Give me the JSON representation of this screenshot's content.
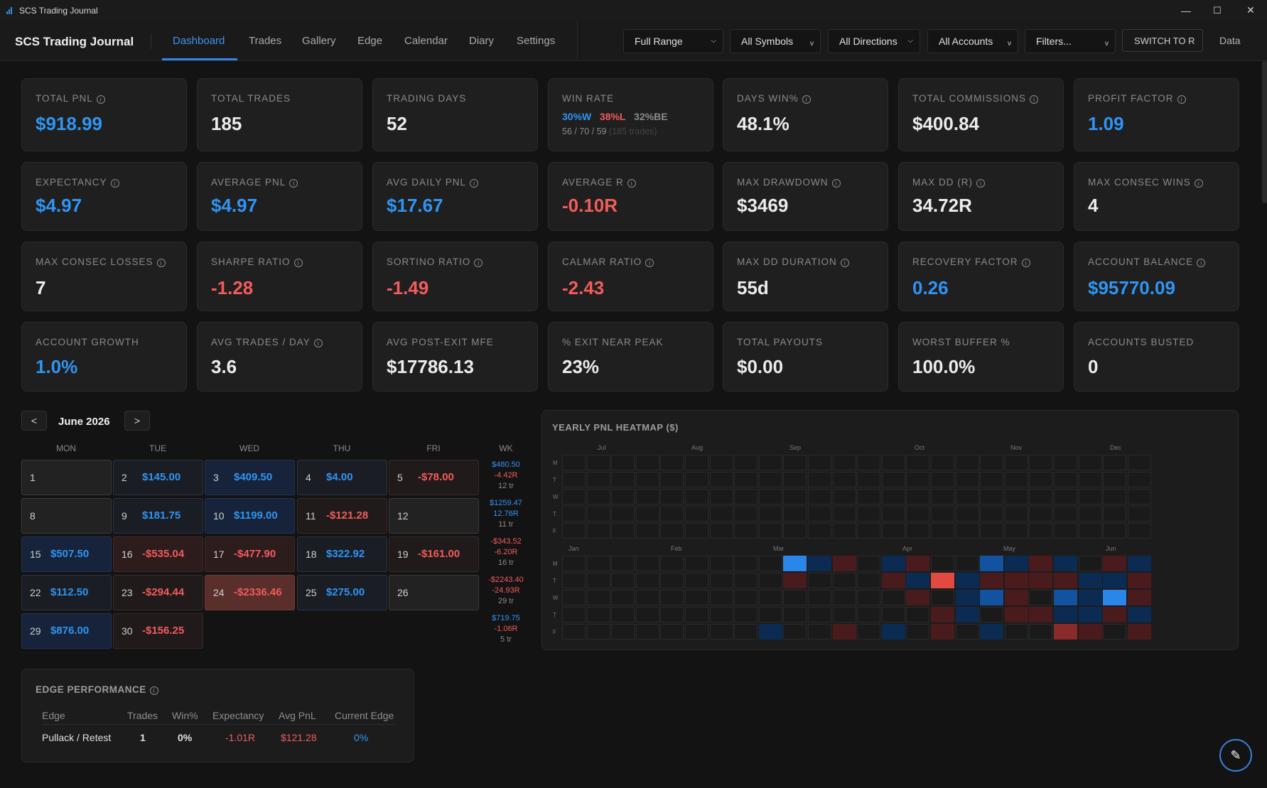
{
  "window": {
    "title": "SCS Trading Journal",
    "minimize": "—",
    "maximize": "☐",
    "close": "✕"
  },
  "nav": {
    "brand": "SCS Trading Journal",
    "tabs": [
      "Dashboard",
      "Trades",
      "Gallery",
      "Edge",
      "Calendar",
      "Diary",
      "Settings"
    ],
    "active_tab": "Dashboard"
  },
  "filters": {
    "range": "Full Range",
    "symbols": "All Symbols",
    "directions": "All Directions",
    "accounts": "All Accounts",
    "filters": "Filters...",
    "switch": "SWITCH TO R",
    "data": "Data"
  },
  "stats": [
    {
      "label": "TOTAL PNL",
      "info": true,
      "value": "$918.99",
      "color": "blue"
    },
    {
      "label": "TOTAL TRADES",
      "info": false,
      "value": "185",
      "color": "white"
    },
    {
      "label": "TRADING DAYS",
      "info": false,
      "value": "52",
      "color": "white"
    },
    {
      "label": "WIN RATE",
      "info": false,
      "value": "",
      "color": "white"
    },
    {
      "label": "DAYS WIN%",
      "info": true,
      "value": "48.1%",
      "color": "white"
    },
    {
      "label": "TOTAL COMMISSIONS",
      "info": true,
      "value": "$400.84",
      "color": "white"
    },
    {
      "label": "PROFIT FACTOR",
      "info": true,
      "value": "1.09",
      "color": "blue"
    },
    {
      "label": "EXPECTANCY",
      "info": true,
      "value": "$4.97",
      "color": "blue"
    },
    {
      "label": "AVERAGE PNL",
      "info": true,
      "value": "$4.97",
      "color": "blue"
    },
    {
      "label": "AVG DAILY PNL",
      "info": true,
      "value": "$17.67",
      "color": "blue"
    },
    {
      "label": "AVERAGE R",
      "info": true,
      "value": "-0.10R",
      "color": "red"
    },
    {
      "label": "MAX DRAWDOWN",
      "info": true,
      "value": "$3469",
      "color": "white"
    },
    {
      "label": "MAX DD (R)",
      "info": true,
      "value": "34.72R",
      "color": "white"
    },
    {
      "label": "MAX CONSEC WINS",
      "info": true,
      "value": "4",
      "color": "white"
    },
    {
      "label": "MAX CONSEC LOSSES",
      "info": true,
      "value": "7",
      "color": "white"
    },
    {
      "label": "SHARPE RATIO",
      "info": true,
      "value": "-1.28",
      "color": "red"
    },
    {
      "label": "SORTINO RATIO",
      "info": true,
      "value": "-1.49",
      "color": "red"
    },
    {
      "label": "CALMAR RATIO",
      "info": true,
      "value": "-2.43",
      "color": "red"
    },
    {
      "label": "MAX DD DURATION",
      "info": true,
      "value": "55d",
      "color": "white"
    },
    {
      "label": "RECOVERY FACTOR",
      "info": true,
      "value": "0.26",
      "color": "blue"
    },
    {
      "label": "ACCOUNT BALANCE",
      "info": true,
      "value": "$95770.09",
      "color": "blue"
    },
    {
      "label": "ACCOUNT GROWTH",
      "info": false,
      "value": "1.0%",
      "color": "blue"
    },
    {
      "label": "AVG TRADES / DAY",
      "info": true,
      "value": "3.6",
      "color": "white"
    },
    {
      "label": "AVG POST-EXIT MFE",
      "info": false,
      "value": "$17786.13",
      "color": "white"
    },
    {
      "label": "% EXIT NEAR PEAK",
      "info": false,
      "value": "23%",
      "color": "white"
    },
    {
      "label": "TOTAL PAYOUTS",
      "info": false,
      "value": "$0.00",
      "color": "white"
    },
    {
      "label": "WORST BUFFER %",
      "info": false,
      "value": "100.0%",
      "color": "white"
    },
    {
      "label": "ACCOUNTS BUSTED",
      "info": false,
      "value": "0",
      "color": "white"
    }
  ],
  "win_rate": {
    "w": "30%W",
    "l": "38%L",
    "be": "32%BE",
    "counts": "56 / 70 / 59",
    "trades": "(185 trades)"
  },
  "calendar": {
    "prev": "<",
    "next": ">",
    "month": "June 2026",
    "weekdays": [
      "MON",
      "TUE",
      "WED",
      "THU",
      "FRI",
      "WK"
    ],
    "weeks": [
      [
        {
          "d": "1",
          "p": "",
          "s": "none"
        },
        {
          "d": "2",
          "p": "$145.00",
          "s": "pos"
        },
        {
          "d": "3",
          "p": "$409.50",
          "s": "pos2"
        },
        {
          "d": "4",
          "p": "$4.00",
          "s": "pos"
        },
        {
          "d": "5",
          "p": "-$78.00",
          "s": "neg"
        }
      ],
      [
        {
          "d": "8",
          "p": "",
          "s": "none"
        },
        {
          "d": "9",
          "p": "$181.75",
          "s": "pos"
        },
        {
          "d": "10",
          "p": "$1199.00",
          "s": "pos2"
        },
        {
          "d": "11",
          "p": "-$121.28",
          "s": "neg"
        },
        {
          "d": "12",
          "p": "",
          "s": "none"
        }
      ],
      [
        {
          "d": "15",
          "p": "$507.50",
          "s": "pos2"
        },
        {
          "d": "16",
          "p": "-$535.04",
          "s": "neg2"
        },
        {
          "d": "17",
          "p": "-$477.90",
          "s": "neg2"
        },
        {
          "d": "18",
          "p": "$322.92",
          "s": "pos"
        },
        {
          "d": "19",
          "p": "-$161.00",
          "s": "neg"
        }
      ],
      [
        {
          "d": "22",
          "p": "$112.50",
          "s": "pos"
        },
        {
          "d": "23",
          "p": "-$294.44",
          "s": "neg"
        },
        {
          "d": "24",
          "p": "-$2336.46",
          "s": "neg3"
        },
        {
          "d": "25",
          "p": "$275.00",
          "s": "pos"
        },
        {
          "d": "26",
          "p": "",
          "s": "none"
        }
      ],
      [
        {
          "d": "29",
          "p": "$876.00",
          "s": "pos2"
        },
        {
          "d": "30",
          "p": "-$156.25",
          "s": "neg"
        }
      ]
    ],
    "weekly": [
      {
        "pnl": "$480.50",
        "pc": "pos",
        "r": "-4.42R",
        "rc": "neg",
        "t": "12 tr"
      },
      {
        "pnl": "$1259.47",
        "pc": "pos",
        "r": "12.76R",
        "rc": "pos",
        "t": "11 tr"
      },
      {
        "pnl": "-$343.52",
        "pc": "neg",
        "r": "-6.20R",
        "rc": "neg",
        "t": "16 tr"
      },
      {
        "pnl": "-$2243.40",
        "pc": "neg",
        "r": "-24.93R",
        "rc": "neg",
        "t": "29 tr"
      },
      {
        "pnl": "$719.75",
        "pc": "pos",
        "r": "-1.06R",
        "rc": "neg",
        "t": "5 tr"
      }
    ]
  },
  "heatmap": {
    "title": "YEARLY PNL HEATMAP ($)",
    "days": [
      "M",
      "T",
      "W",
      "T",
      "F"
    ],
    "top_months": [
      "Jul",
      "Aug",
      "Sep",
      "Oct",
      "Nov",
      "Dec"
    ],
    "bottom_months": [
      "Jan",
      "Feb",
      "Mar",
      "Apr",
      "May",
      "Jun"
    ],
    "bottom_cells": [
      {
        "c": 9,
        "r": 0,
        "v": "p3"
      },
      {
        "c": 10,
        "r": 0,
        "v": "p1"
      },
      {
        "c": 11,
        "r": 0,
        "v": "n1"
      },
      {
        "c": 13,
        "r": 0,
        "v": "p1"
      },
      {
        "c": 14,
        "r": 0,
        "v": "n1"
      },
      {
        "c": 17,
        "r": 0,
        "v": "p2"
      },
      {
        "c": 18,
        "r": 0,
        "v": "p1"
      },
      {
        "c": 19,
        "r": 0,
        "v": "n1"
      },
      {
        "c": 20,
        "r": 0,
        "v": "p1"
      },
      {
        "c": 22,
        "r": 0,
        "v": "n1"
      },
      {
        "c": 23,
        "r": 0,
        "v": "p1"
      },
      {
        "c": 24,
        "r": 0,
        "v": "p2"
      },
      {
        "c": 9,
        "r": 1,
        "v": "n1"
      },
      {
        "c": 13,
        "r": 1,
        "v": "n1"
      },
      {
        "c": 14,
        "r": 1,
        "v": "p1"
      },
      {
        "c": 15,
        "r": 1,
        "v": "n3"
      },
      {
        "c": 16,
        "r": 1,
        "v": "p1"
      },
      {
        "c": 17,
        "r": 1,
        "v": "n1"
      },
      {
        "c": 18,
        "r": 1,
        "v": "n1"
      },
      {
        "c": 19,
        "r": 1,
        "v": "n1"
      },
      {
        "c": 20,
        "r": 1,
        "v": "n1"
      },
      {
        "c": 21,
        "r": 1,
        "v": "p1"
      },
      {
        "c": 22,
        "r": 1,
        "v": "p1"
      },
      {
        "c": 23,
        "r": 1,
        "v": "n1"
      },
      {
        "c": 24,
        "r": 1,
        "v": "n1"
      },
      {
        "c": 25,
        "r": 1,
        "v": "n1"
      },
      {
        "c": 14,
        "r": 2,
        "v": "n1"
      },
      {
        "c": 16,
        "r": 2,
        "v": "p1"
      },
      {
        "c": 17,
        "r": 2,
        "v": "p2"
      },
      {
        "c": 18,
        "r": 2,
        "v": "n1"
      },
      {
        "c": 20,
        "r": 2,
        "v": "p2"
      },
      {
        "c": 21,
        "r": 2,
        "v": "p1"
      },
      {
        "c": 22,
        "r": 2,
        "v": "p3"
      },
      {
        "c": 23,
        "r": 2,
        "v": "n1"
      },
      {
        "c": 24,
        "r": 2,
        "v": "n3"
      },
      {
        "c": 25,
        "r": 2,
        "v": "p1"
      },
      {
        "c": 15,
        "r": 3,
        "v": "n1"
      },
      {
        "c": 16,
        "r": 3,
        "v": "p1"
      },
      {
        "c": 18,
        "r": 3,
        "v": "n1"
      },
      {
        "c": 19,
        "r": 3,
        "v": "n1"
      },
      {
        "c": 20,
        "r": 3,
        "v": "p1"
      },
      {
        "c": 21,
        "r": 3,
        "v": "p1"
      },
      {
        "c": 22,
        "r": 3,
        "v": "n1"
      },
      {
        "c": 23,
        "r": 3,
        "v": "p1"
      },
      {
        "c": 24,
        "r": 3,
        "v": "n1"
      },
      {
        "c": 8,
        "r": 4,
        "v": "p1"
      },
      {
        "c": 11,
        "r": 4,
        "v": "n1"
      },
      {
        "c": 13,
        "r": 4,
        "v": "p1"
      },
      {
        "c": 15,
        "r": 4,
        "v": "n1"
      },
      {
        "c": 17,
        "r": 4,
        "v": "p1"
      },
      {
        "c": 20,
        "r": 4,
        "v": "n2"
      },
      {
        "c": 21,
        "r": 4,
        "v": "n1"
      },
      {
        "c": 23,
        "r": 4,
        "v": "n1"
      }
    ]
  },
  "edge": {
    "title": "EDGE PERFORMANCE",
    "headers": [
      "Edge",
      "Trades",
      "Win%",
      "Expectancy",
      "Avg PnL",
      "Current Edge"
    ],
    "rows": [
      [
        "Pullack / Retest",
        "1",
        "0%",
        "-1.01R",
        "$121.28",
        "0%"
      ]
    ]
  },
  "colors": {
    "accent": "#2f86e8",
    "positive": "#2f95f3",
    "negative": "#f25c5c",
    "background": "#131313",
    "card": "#1f1f1f"
  },
  "fab": {
    "icon": "pencil-icon",
    "glyph": "✎"
  }
}
